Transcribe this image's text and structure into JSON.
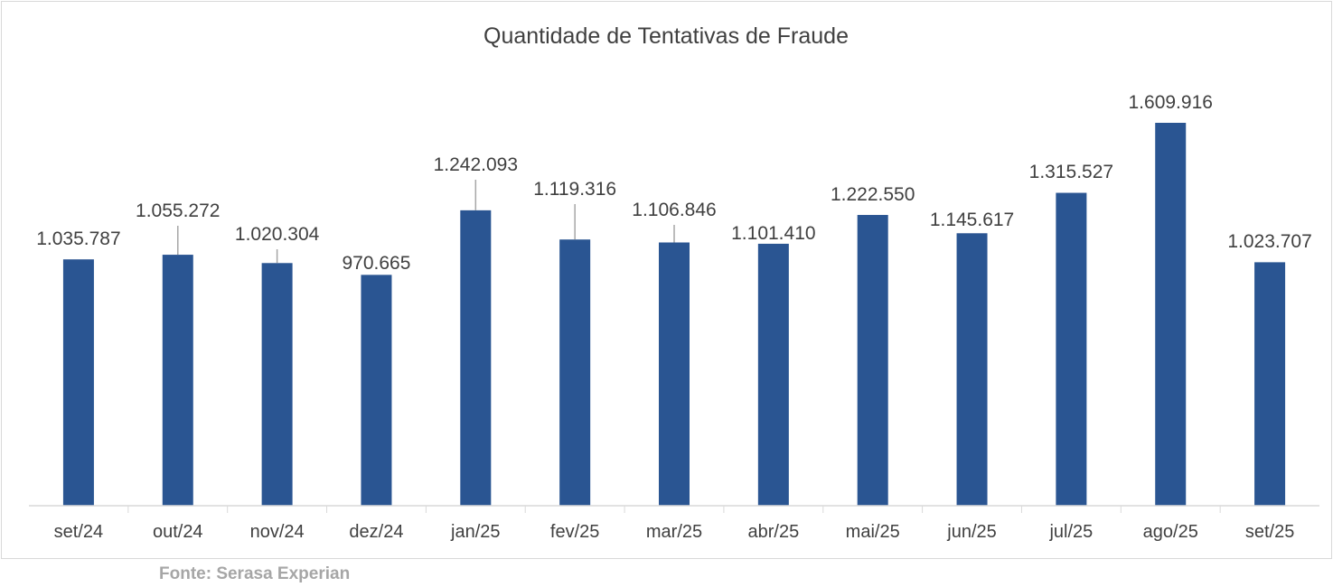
{
  "chart_data": {
    "type": "bar",
    "title": "Quantidade de Tentativas de Fraude",
    "categories": [
      "set/24",
      "out/24",
      "nov/24",
      "dez/24",
      "jan/25",
      "fev/25",
      "mar/25",
      "abr/25",
      "mai/25",
      "jun/25",
      "jul/25",
      "ago/25",
      "set/25"
    ],
    "values": [
      1035787,
      1055272,
      1020304,
      970665,
      1242093,
      1119316,
      1106846,
      1101410,
      1222550,
      1145617,
      1315527,
      1609916,
      1023707
    ],
    "data_labels": [
      "1.035.787",
      "1.055.272",
      "1.020.304",
      "970.665",
      "1.242.093",
      "1.119.316",
      "1.106.846",
      "1.101.410",
      "1.222.550",
      "1.145.617",
      "1.315.527",
      "1.609.916",
      "1.023.707"
    ],
    "xlabel": "",
    "ylabel": "",
    "ylim": [
      0,
      1610000
    ],
    "y_axis_visible": false,
    "grid": false,
    "legend": "none",
    "bar_color": "#2A5592"
  },
  "source": "Fonte: Serasa Experian"
}
